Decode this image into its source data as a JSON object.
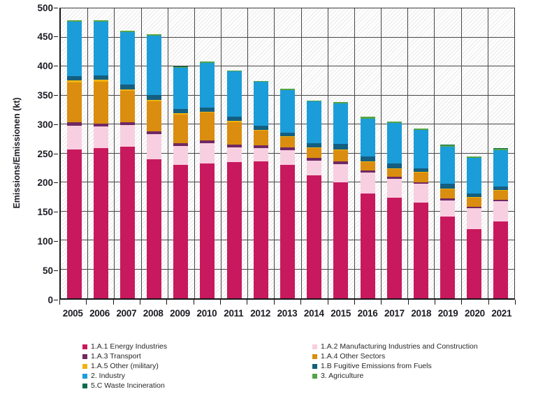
{
  "chart_data": {
    "type": "bar",
    "subtype": "stacked",
    "title": "",
    "ylabel": "Emissions/Emissionen (kt)",
    "xlabel": "",
    "ylim": [
      0,
      500
    ],
    "ytick_step": 50,
    "grid": true,
    "legend_position": "bottom",
    "categories": [
      "2005",
      "2006",
      "2007",
      "2008",
      "2009",
      "2010",
      "2011",
      "2012",
      "2013",
      "2014",
      "2015",
      "2016",
      "2017",
      "2018",
      "2019",
      "2020",
      "2021"
    ],
    "series": [
      {
        "name": "1.A.1 Energy Industries",
        "color": "#C8195E",
        "values": [
          255,
          257,
          259,
          238,
          228,
          231,
          233,
          234,
          228,
          210,
          198,
          179,
          172,
          164,
          140,
          119,
          132
        ]
      },
      {
        "name": "1.A.2 Manufacturing Industries and Construction",
        "color": "#F8CFE0",
        "values": [
          40,
          37,
          38,
          43,
          33,
          34,
          25,
          23,
          26,
          26,
          32,
          36,
          33,
          32,
          28,
          35,
          34
        ]
      },
      {
        "name": "1.A.3 Transport",
        "color": "#6F2963",
        "values": [
          6,
          5,
          5,
          4.5,
          5,
          5,
          5,
          5,
          4,
          4,
          4,
          4,
          3,
          3,
          3,
          3,
          3
        ]
      },
      {
        "name": "1.A.4 Other Sectors",
        "color": "#DA8D0E",
        "values": [
          69,
          72,
          53,
          52,
          49,
          48,
          39,
          25,
          18,
          17,
          20,
          14,
          13,
          16,
          16,
          15,
          15
        ]
      },
      {
        "name": "1.A.5 Other (military)",
        "color": "#F0B310",
        "values": [
          3,
          3,
          2.5,
          2.5,
          1.5,
          1.5,
          1.5,
          1.5,
          1,
          1,
          1,
          1,
          1,
          1,
          1,
          1,
          1
        ]
      },
      {
        "name": "1.B Fugitive Emissions from Fuels",
        "color": "#145F7F",
        "values": [
          8,
          8,
          8.5,
          8,
          8,
          7,
          7,
          7,
          7,
          8,
          9,
          9,
          9,
          7,
          8,
          7,
          7
        ]
      },
      {
        "name": "2. Industry",
        "color": "#1B9DD9",
        "values": [
          93,
          92,
          90,
          102,
          70,
          77,
          78,
          75,
          73,
          71,
          70,
          65,
          69,
          65,
          64,
          60,
          62
        ]
      },
      {
        "name": "3. Agriculture",
        "color": "#54A546",
        "values": [
          2,
          2,
          2,
          2,
          2,
          1.5,
          1.5,
          1.5,
          1.5,
          1,
          2,
          2.5,
          2.5,
          2.5,
          2.5,
          2.5,
          2.5
        ]
      },
      {
        "name": "5.C Waste Incineration",
        "color": "#0B6B4B",
        "values": [
          0.5,
          0.5,
          0.5,
          0.5,
          0.5,
          0.5,
          0.5,
          0.5,
          0.5,
          0.5,
          0.5,
          0.5,
          0.5,
          0.5,
          0.5,
          0.5,
          0.5
        ]
      }
    ],
    "totals": [
      476.5,
      476.5,
      458.5,
      452.5,
      397,
      405.5,
      390.5,
      372.5,
      359,
      338.5,
      336.5,
      311,
      303,
      291,
      263,
      243,
      257
    ],
    "legend": {
      "left_column_series": [
        0,
        2,
        4,
        6,
        8
      ],
      "right_column_series": [
        1,
        3,
        5,
        7
      ]
    }
  },
  "style_colors": {
    "axis_text": "#1c1c24",
    "gridline": "#474747",
    "frame": "#161616",
    "hatch": "#8c8c8c"
  }
}
